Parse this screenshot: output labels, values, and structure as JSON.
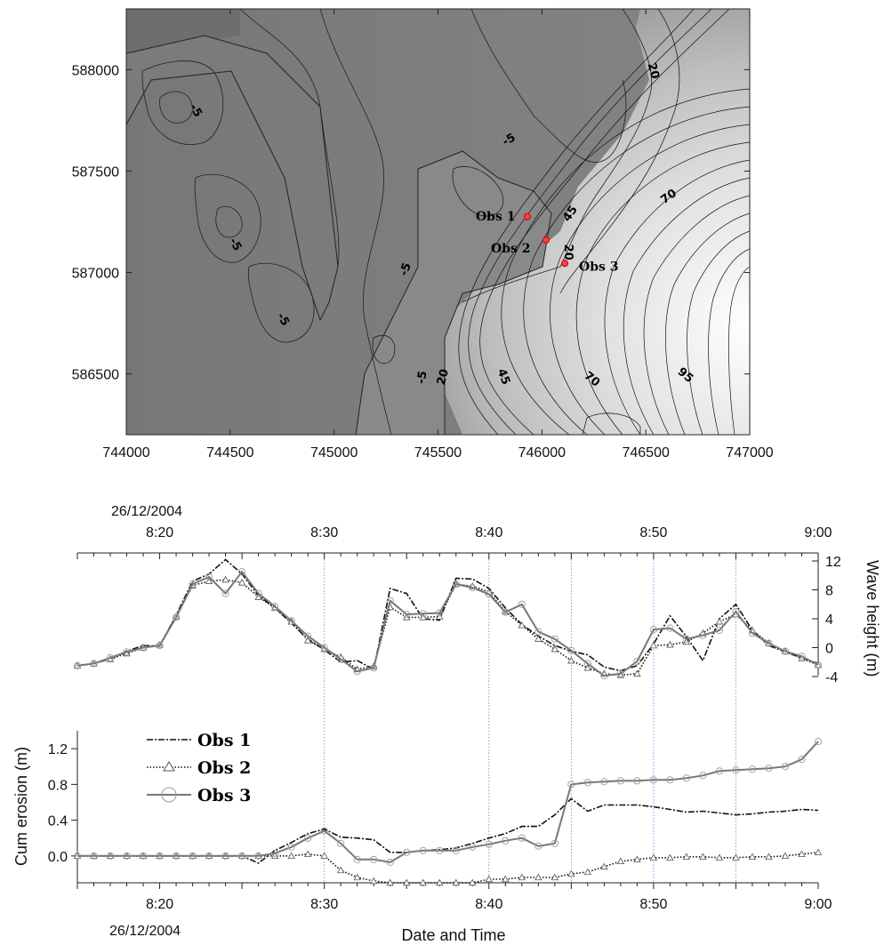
{
  "chart_data": [
    {
      "type": "contour",
      "x_ticks": [
        "744000",
        "744500",
        "745000",
        "745500",
        "746000",
        "746500",
        "747000"
      ],
      "y_ticks": [
        "586500",
        "587000",
        "587500",
        "588000"
      ],
      "xlim": [
        744000,
        747000
      ],
      "ylim": [
        586200,
        588300
      ],
      "contour_labels": [
        {
          "text": "-5",
          "x": 744320,
          "y": 587790,
          "rot": 60
        },
        {
          "text": "-5",
          "x": 744510,
          "y": 587130,
          "rot": 60
        },
        {
          "text": "-5",
          "x": 744740,
          "y": 586760,
          "rot": 60
        },
        {
          "text": "-5",
          "x": 745360,
          "y": 587010,
          "rot": -70
        },
        {
          "text": "-5",
          "x": 745440,
          "y": 586480,
          "rot": -80
        },
        {
          "text": "-5",
          "x": 745850,
          "y": 587640,
          "rot": -30
        },
        {
          "text": "20",
          "x": 746520,
          "y": 587990,
          "rot": 75
        },
        {
          "text": "20",
          "x": 745540,
          "y": 586480,
          "rot": -75
        },
        {
          "text": "20",
          "x": 746110,
          "y": 587100,
          "rot": 90
        },
        {
          "text": "45",
          "x": 746150,
          "y": 587280,
          "rot": -55
        },
        {
          "text": "45",
          "x": 745800,
          "y": 586480,
          "rot": 70
        },
        {
          "text": "70",
          "x": 746620,
          "y": 587360,
          "rot": -35
        },
        {
          "text": "70",
          "x": 746230,
          "y": 586460,
          "rot": 40
        },
        {
          "text": "95",
          "x": 746680,
          "y": 586480,
          "rot": 40
        }
      ],
      "observation_points": [
        {
          "label": "Obs 1",
          "x": 745930,
          "y": 587275
        },
        {
          "label": "Obs 2",
          "x": 746020,
          "y": 587160
        },
        {
          "label": "Obs 3",
          "x": 746110,
          "y": 587045
        }
      ]
    },
    {
      "type": "line",
      "ylabel": "Wave height (m)",
      "ylim": [
        -4,
        12
      ],
      "y_ticks": [
        -4,
        0,
        4,
        8,
        12
      ],
      "top_axis_date": "26/12/2004",
      "time_ticks": [
        "8:20",
        "8:30",
        "8:40",
        "8:50",
        "9:00"
      ],
      "x_minutes": [
        15,
        16,
        17,
        18,
        19,
        20,
        21,
        22,
        23,
        24,
        25,
        26,
        27,
        28,
        29,
        30,
        31,
        32,
        33,
        34,
        35,
        36,
        37,
        38,
        39,
        40,
        41,
        42,
        43,
        44,
        45,
        46,
        47,
        48,
        49,
        50,
        51,
        52,
        53,
        54,
        55,
        56,
        57,
        58,
        59,
        60
      ],
      "vertical_gridlines": [
        30,
        40,
        45,
        50,
        55
      ],
      "series": [
        {
          "name": "Obs 1",
          "values": [
            -2.5,
            -2.2,
            -1.5,
            -0.5,
            0.3,
            0.2,
            4.5,
            9.2,
            10.2,
            12.2,
            10.2,
            7.2,
            5.5,
            3.4,
            1.2,
            -0.3,
            -2.0,
            -1.8,
            -3.0,
            8.2,
            7.5,
            4.0,
            3.8,
            9.6,
            9.5,
            8.2,
            5.5,
            3.2,
            1.6,
            0.3,
            -0.5,
            -1.0,
            -2.7,
            -3.2,
            -2.5,
            0.5,
            4.4,
            1.5,
            -1.8,
            4.0,
            6.0,
            2.4,
            0.3,
            -0.6,
            -1.4,
            -2.2
          ]
        },
        {
          "name": "Obs 2",
          "values": [
            -2.5,
            -2.2,
            -1.6,
            -0.8,
            0.0,
            0.4,
            4.3,
            8.6,
            9.2,
            9.4,
            9.0,
            7.0,
            5.5,
            3.6,
            1.0,
            -0.2,
            -1.3,
            -3.0,
            -2.6,
            5.6,
            4.2,
            4.2,
            4.3,
            8.8,
            8.5,
            7.7,
            5.0,
            3.1,
            1.2,
            -0.2,
            -1.8,
            -2.8,
            -3.6,
            -3.8,
            -3.6,
            0.3,
            0.4,
            0.8,
            2.0,
            3.6,
            4.6,
            2.4,
            0.6,
            -0.5,
            -1.5,
            -2.4
          ]
        },
        {
          "name": "Obs 3",
          "values": [
            -2.5,
            -2.2,
            -1.4,
            -0.6,
            0.0,
            0.3,
            4.2,
            8.8,
            9.8,
            7.5,
            10.5,
            7.5,
            5.7,
            3.7,
            1.6,
            0.0,
            -1.6,
            -3.3,
            -2.8,
            6.5,
            4.6,
            4.7,
            4.8,
            8.8,
            8.3,
            7.4,
            4.9,
            6.0,
            2.2,
            1.2,
            -0.4,
            -2.2,
            -3.9,
            -3.6,
            -1.9,
            2.5,
            2.7,
            1.2,
            1.7,
            2.4,
            5.0,
            2.0,
            0.6,
            -0.5,
            -1.2,
            -2.4
          ]
        }
      ]
    },
    {
      "type": "line",
      "xlabel": "Date and Time",
      "ylabel": "Cum erosion (m)",
      "ylim": [
        -0.3,
        1.4
      ],
      "y_ticks": [
        "0.0",
        "0.4",
        "0.8",
        "1.2"
      ],
      "bottom_axis_date": "26/12/2004",
      "time_ticks": [
        "8:20",
        "8:30",
        "8:40",
        "8:50",
        "9:00"
      ],
      "x_minutes": [
        15,
        16,
        17,
        18,
        19,
        20,
        21,
        22,
        23,
        24,
        25,
        26,
        27,
        28,
        29,
        30,
        31,
        32,
        33,
        34,
        35,
        36,
        37,
        38,
        39,
        40,
        41,
        42,
        43,
        44,
        45,
        46,
        47,
        48,
        49,
        50,
        51,
        52,
        53,
        54,
        55,
        56,
        57,
        58,
        59,
        60
      ],
      "vertical_gridlines": [
        30,
        40,
        45,
        50,
        55
      ],
      "legend_position": "upper-left",
      "series": [
        {
          "name": "Obs 1",
          "values": [
            0,
            0,
            0,
            0,
            0,
            0,
            0,
            0,
            0,
            0,
            0,
            -0.08,
            0.06,
            0.15,
            0.25,
            0.3,
            0.21,
            0.2,
            0.18,
            0.04,
            0.04,
            0.06,
            0.07,
            0.09,
            0.14,
            0.2,
            0.25,
            0.33,
            0.33,
            0.46,
            0.64,
            0.5,
            0.57,
            0.57,
            0.57,
            0.55,
            0.52,
            0.49,
            0.5,
            0.48,
            0.46,
            0.47,
            0.49,
            0.5,
            0.52,
            0.51
          ]
        },
        {
          "name": "Obs 2",
          "values": [
            0,
            0,
            0,
            0,
            0,
            0,
            0,
            0,
            0,
            0,
            0,
            0,
            0,
            0,
            0.02,
            0.0,
            -0.16,
            -0.24,
            -0.28,
            -0.3,
            -0.3,
            -0.3,
            -0.3,
            -0.3,
            -0.3,
            -0.26,
            -0.26,
            -0.24,
            -0.24,
            -0.24,
            -0.2,
            -0.18,
            -0.12,
            -0.06,
            -0.04,
            -0.02,
            -0.02,
            -0.01,
            -0.01,
            -0.02,
            -0.02,
            -0.01,
            -0.01,
            0.0,
            0.02,
            0.04
          ]
        },
        {
          "name": "Obs 3",
          "values": [
            0,
            0,
            0,
            0,
            0,
            0,
            0,
            0,
            0,
            0,
            0,
            0,
            0.03,
            0.1,
            0.2,
            0.28,
            0.14,
            -0.04,
            -0.04,
            -0.07,
            0.04,
            0.06,
            0.06,
            0.06,
            0.1,
            0.13,
            0.17,
            0.2,
            0.11,
            0.14,
            0.8,
            0.82,
            0.83,
            0.84,
            0.84,
            0.85,
            0.85,
            0.87,
            0.9,
            0.95,
            0.96,
            0.97,
            0.98,
            1.0,
            1.08,
            1.28
          ]
        }
      ]
    }
  ]
}
